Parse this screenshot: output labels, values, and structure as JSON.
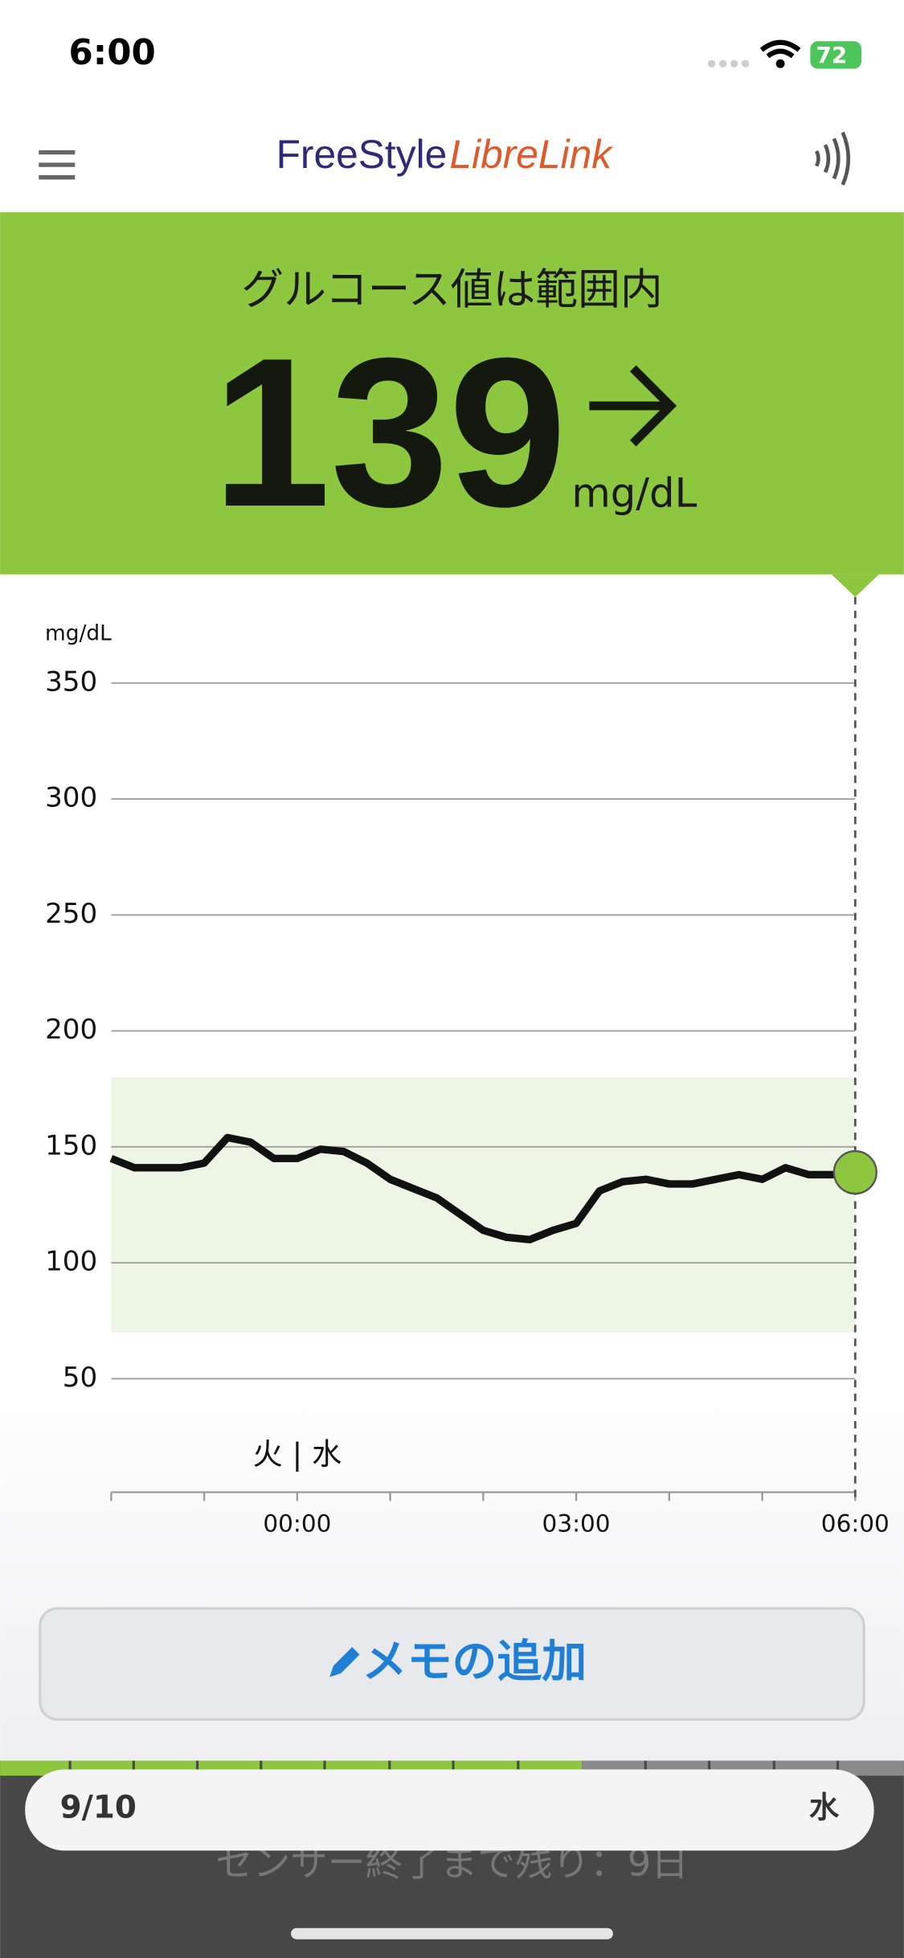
{
  "status_bar": {
    "time": "6:00",
    "battery": "72"
  },
  "header": {
    "logo_main": "FreeStyle",
    "logo_accent": "LibreLink"
  },
  "banner": {
    "status": "グルコース値は範囲内",
    "value": 139,
    "unit": "mg/dL"
  },
  "chart_data": {
    "type": "line",
    "y_label": "mg/dL",
    "day_label": "火 | 水",
    "x": [
      -2,
      -1.75,
      -1.5,
      -1.25,
      -1,
      -0.75,
      -0.5,
      -0.25,
      0,
      0.25,
      0.5,
      0.75,
      1,
      1.25,
      1.5,
      1.75,
      2,
      2.25,
      2.5,
      2.75,
      3,
      3.25,
      3.5,
      3.75,
      4,
      4.25,
      4.5,
      4.75,
      5,
      5.25,
      5.5,
      5.75,
      6
    ],
    "values": [
      145,
      141,
      141,
      141,
      143,
      154,
      152,
      145,
      145,
      149,
      148,
      143,
      136,
      132,
      128,
      121,
      114,
      111,
      110,
      114,
      117,
      131,
      135,
      136,
      134,
      134,
      136,
      138,
      136,
      141,
      138,
      138,
      139
    ],
    "color": "#111111",
    "marker_color": "#8dc63f",
    "target_range": [
      70,
      180
    ],
    "target_color": "#edf6e5",
    "xlim": [
      -2,
      6
    ],
    "xticks": [
      {
        "value": 0,
        "label": "00:00"
      },
      {
        "value": 3,
        "label": "03:00"
      },
      {
        "value": 6,
        "label": "06:00"
      }
    ],
    "xminor_ticks": [
      -2,
      -1,
      1,
      2,
      4,
      5
    ],
    "ylim": [
      0,
      350
    ],
    "yticks": [
      50,
      100,
      150,
      200,
      250,
      300,
      350
    ],
    "grid": true
  },
  "memo_button": {
    "label": "メモの追加"
  },
  "sensor": {
    "date": "9/10",
    "weekday": "水",
    "remaining": "センサー終了まで残り：9日"
  }
}
